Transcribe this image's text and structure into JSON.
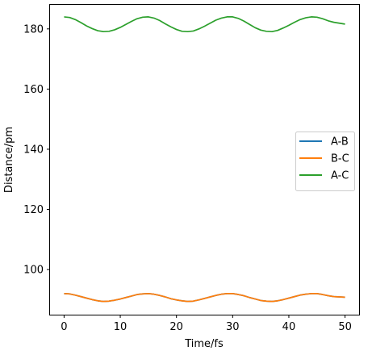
{
  "chart_data": {
    "type": "line",
    "title": "",
    "xlabel": "Time/fs",
    "ylabel": "Distance/pm",
    "xlim": [
      -2.5,
      52.5
    ],
    "ylim": [
      85,
      188
    ],
    "xticks": [
      0,
      10,
      20,
      30,
      40,
      50
    ],
    "yticks": [
      100,
      120,
      140,
      160,
      180
    ],
    "grid": false,
    "legend_placement": "center-right",
    "x": [
      0,
      1,
      2,
      3,
      4,
      5,
      6,
      7,
      8,
      9,
      10,
      11,
      12,
      13,
      14,
      15,
      16,
      17,
      18,
      19,
      20,
      21,
      22,
      23,
      24,
      25,
      26,
      27,
      28,
      29,
      30,
      31,
      32,
      33,
      34,
      35,
      36,
      37,
      38,
      39,
      40,
      41,
      42,
      43,
      44,
      45,
      46,
      47,
      48,
      49,
      50
    ],
    "series": [
      {
        "name": "A-B",
        "color": "#1f77b4",
        "values": [
          92.0,
          91.9,
          91.5,
          91.0,
          90.5,
          90.0,
          89.6,
          89.4,
          89.5,
          89.8,
          90.2,
          90.7,
          91.2,
          91.7,
          91.9,
          92.0,
          91.8,
          91.4,
          90.9,
          90.3,
          89.9,
          89.6,
          89.4,
          89.5,
          89.9,
          90.4,
          90.9,
          91.4,
          91.8,
          92.0,
          92.0,
          91.7,
          91.3,
          90.7,
          90.2,
          89.7,
          89.5,
          89.4,
          89.6,
          90.0,
          90.5,
          91.0,
          91.5,
          91.8,
          92.0,
          92.0,
          91.7,
          91.3,
          91.0,
          90.9,
          90.8
        ]
      },
      {
        "name": "B-C",
        "color": "#ff7f0e",
        "values": [
          92.0,
          91.9,
          91.5,
          91.0,
          90.5,
          90.0,
          89.6,
          89.4,
          89.5,
          89.8,
          90.2,
          90.7,
          91.2,
          91.7,
          91.9,
          92.0,
          91.8,
          91.4,
          90.9,
          90.3,
          89.9,
          89.6,
          89.4,
          89.5,
          89.9,
          90.4,
          90.9,
          91.4,
          91.8,
          92.0,
          92.0,
          91.7,
          91.3,
          90.7,
          90.2,
          89.7,
          89.5,
          89.4,
          89.6,
          90.0,
          90.5,
          91.0,
          91.5,
          91.8,
          92.0,
          92.0,
          91.7,
          91.3,
          91.0,
          90.9,
          90.8
        ]
      },
      {
        "name": "A-C",
        "color": "#2ca02c",
        "values": [
          184.0,
          183.8,
          183.1,
          182.1,
          181.0,
          180.1,
          179.4,
          179.1,
          179.2,
          179.7,
          180.5,
          181.5,
          182.5,
          183.4,
          183.9,
          184.0,
          183.6,
          182.8,
          181.7,
          180.7,
          179.8,
          179.2,
          179.1,
          179.3,
          180.0,
          180.9,
          181.9,
          182.9,
          183.6,
          184.0,
          184.0,
          183.5,
          182.6,
          181.5,
          180.4,
          179.6,
          179.2,
          179.1,
          179.5,
          180.3,
          181.2,
          182.2,
          183.1,
          183.7,
          184.0,
          183.9,
          183.4,
          182.7,
          182.2,
          181.9,
          181.6
        ]
      }
    ]
  }
}
